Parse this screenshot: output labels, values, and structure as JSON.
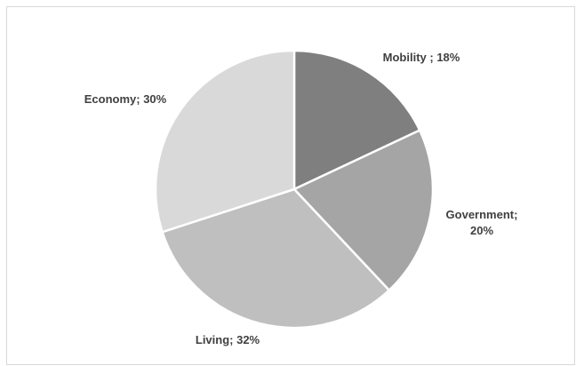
{
  "chart_data": {
    "type": "pie",
    "categories": [
      "Mobility",
      "Government",
      "Living",
      "Economy"
    ],
    "values": [
      18,
      20,
      32,
      30
    ],
    "unit": "%",
    "colors": [
      "#7f7f7f",
      "#a5a5a5",
      "#bfbfbf",
      "#d9d9d9"
    ],
    "labels": [
      {
        "lines": [
          "Mobility ; 18%"
        ]
      },
      {
        "lines": [
          "Government;",
          "20%"
        ]
      },
      {
        "lines": [
          "Living; 32%"
        ]
      },
      {
        "lines": [
          "Economy; 30%"
        ]
      }
    ],
    "start_angle": "12 o'clock",
    "direction": "clockwise",
    "legend": "none",
    "border_color": "#d9d9d9"
  }
}
